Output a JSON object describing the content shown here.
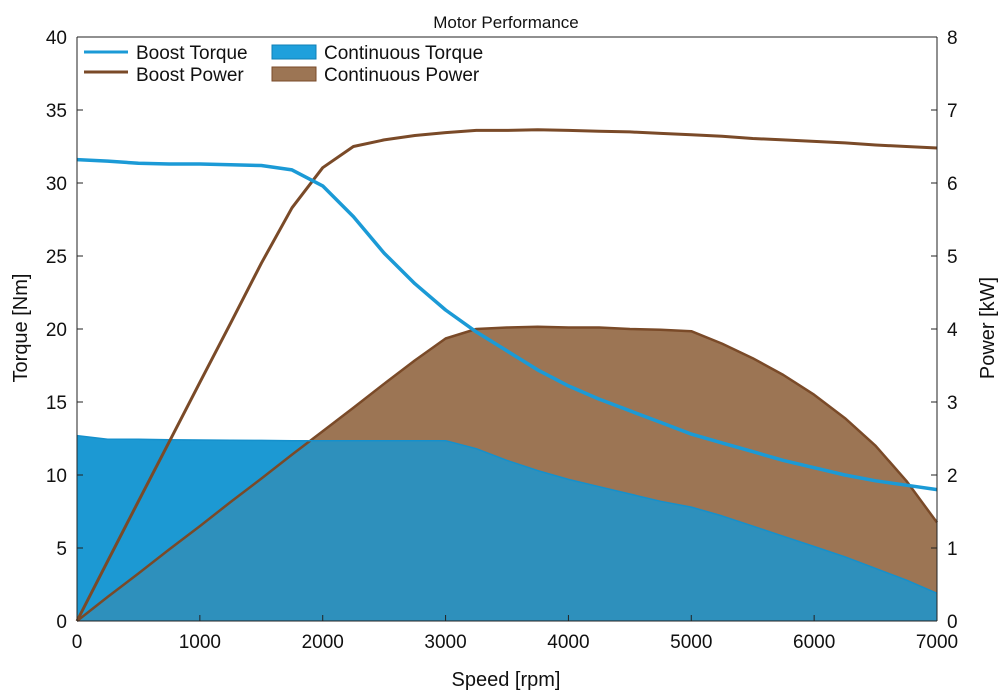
{
  "chart_data": {
    "type": "line",
    "title": "Motor Performance",
    "xlabel": "Speed [rpm]",
    "ylabel_left": "Torque [Nm]",
    "ylabel_right": "Power [kW]",
    "xlim": [
      0,
      7000
    ],
    "ylim_left": [
      0,
      40
    ],
    "ylim_right": [
      0,
      8
    ],
    "xticks": [
      0,
      1000,
      2000,
      3000,
      4000,
      5000,
      6000,
      7000
    ],
    "yticks_left": [
      0,
      5,
      10,
      15,
      20,
      25,
      30,
      35,
      40
    ],
    "yticks_right": [
      0,
      1,
      2,
      3,
      4,
      5,
      6,
      7,
      8
    ],
    "grid": false,
    "legend_position": "top-left",
    "series": [
      {
        "name": "Boost Torque",
        "kind": "line",
        "axis": "left",
        "color": "#1b9ad6",
        "x": [
          0,
          250,
          500,
          750,
          1000,
          1250,
          1500,
          1750,
          2000,
          2250,
          2500,
          2750,
          3000,
          3250,
          3500,
          3750,
          4000,
          4250,
          4500,
          4750,
          5000,
          5250,
          5500,
          5750,
          6000,
          6250,
          6500,
          6750,
          7000
        ],
        "y": [
          31.6,
          31.5,
          31.35,
          31.3,
          31.3,
          31.25,
          31.2,
          30.9,
          29.8,
          27.7,
          25.2,
          23.1,
          21.3,
          19.8,
          18.5,
          17.2,
          16.1,
          15.2,
          14.4,
          13.6,
          12.8,
          12.2,
          11.6,
          11.0,
          10.5,
          10.0,
          9.6,
          9.3,
          9.0
        ]
      },
      {
        "name": "Boost Power",
        "kind": "line",
        "axis": "right",
        "color": "#7a4a28",
        "x": [
          0,
          250,
          500,
          750,
          1000,
          1250,
          1500,
          1750,
          2000,
          2250,
          2500,
          2750,
          3000,
          3250,
          3500,
          3750,
          4000,
          4250,
          4500,
          4750,
          5000,
          5250,
          5500,
          5750,
          6000,
          6250,
          6500,
          6750,
          7000
        ],
        "y": [
          0.0,
          0.82,
          1.64,
          2.45,
          3.27,
          4.08,
          4.9,
          5.66,
          6.21,
          6.5,
          6.59,
          6.65,
          6.69,
          6.72,
          6.72,
          6.73,
          6.72,
          6.71,
          6.7,
          6.68,
          6.66,
          6.64,
          6.61,
          6.59,
          6.57,
          6.55,
          6.52,
          6.5,
          6.48
        ]
      },
      {
        "name": "Continuous Torque",
        "kind": "area",
        "axis": "left",
        "color": "#1fa0dc",
        "x": [
          0,
          250,
          500,
          750,
          1000,
          1250,
          1500,
          1750,
          2000,
          2250,
          2500,
          2750,
          3000,
          3250,
          3500,
          3750,
          4000,
          4250,
          4500,
          4750,
          5000,
          5250,
          5500,
          5750,
          6000,
          6250,
          6500,
          6750,
          7000
        ],
        "y": [
          12.7,
          12.45,
          12.45,
          12.42,
          12.4,
          12.38,
          12.37,
          12.35,
          12.35,
          12.35,
          12.35,
          12.35,
          12.35,
          11.8,
          11.0,
          10.3,
          9.7,
          9.2,
          8.7,
          8.2,
          7.8,
          7.2,
          6.5,
          5.8,
          5.1,
          4.4,
          3.6,
          2.8,
          1.9
        ]
      },
      {
        "name": "Continuous Power",
        "kind": "area",
        "axis": "right",
        "color": "#9c7554",
        "x": [
          0,
          250,
          500,
          750,
          1000,
          1250,
          1500,
          1750,
          2000,
          2250,
          2500,
          2750,
          3000,
          3250,
          3500,
          3750,
          4000,
          4250,
          4500,
          4750,
          5000,
          5250,
          5500,
          5750,
          6000,
          6250,
          6500,
          6750,
          7000
        ],
        "y": [
          0.0,
          0.33,
          0.65,
          0.98,
          1.3,
          1.63,
          1.95,
          2.28,
          2.6,
          2.92,
          3.25,
          3.57,
          3.87,
          4.0,
          4.02,
          4.03,
          4.02,
          4.02,
          4.0,
          3.99,
          3.97,
          3.8,
          3.6,
          3.37,
          3.1,
          2.78,
          2.4,
          1.92,
          1.35
        ]
      }
    ]
  }
}
